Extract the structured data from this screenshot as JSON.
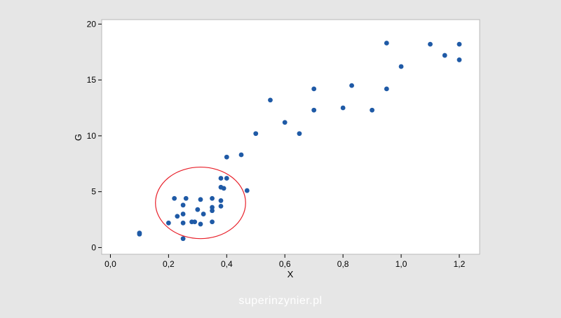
{
  "chart_data": {
    "type": "scatter",
    "title": "",
    "xlabel": "X",
    "ylabel": "G",
    "xlim": [
      -0.03,
      1.27
    ],
    "ylim": [
      -0.6,
      20.4
    ],
    "x_ticks": [
      {
        "value": 0.0,
        "label": "0,0"
      },
      {
        "value": 0.2,
        "label": "0,2"
      },
      {
        "value": 0.4,
        "label": "0,4"
      },
      {
        "value": 0.6,
        "label": "0,6"
      },
      {
        "value": 0.8,
        "label": "0,8"
      },
      {
        "value": 1.0,
        "label": "1,0"
      },
      {
        "value": 1.2,
        "label": "1,2"
      }
    ],
    "y_ticks": [
      {
        "value": 0,
        "label": "0"
      },
      {
        "value": 5,
        "label": "5"
      },
      {
        "value": 10,
        "label": "10"
      },
      {
        "value": 15,
        "label": "15"
      },
      {
        "value": 20,
        "label": "20"
      }
    ],
    "grid": false,
    "marker_color": "#1f5aa6",
    "highlight_color": "#e8202a",
    "highlight_ellipse": {
      "cx": 0.31,
      "cy": 4.0,
      "rx": 0.155,
      "ry": 3.2
    },
    "points": [
      {
        "x": 0.1,
        "y": 1.2
      },
      {
        "x": 0.1,
        "y": 1.3
      },
      {
        "x": 0.2,
        "y": 2.2
      },
      {
        "x": 0.22,
        "y": 4.4
      },
      {
        "x": 0.23,
        "y": 2.8
      },
      {
        "x": 0.25,
        "y": 0.8
      },
      {
        "x": 0.25,
        "y": 2.2
      },
      {
        "x": 0.25,
        "y": 3.0
      },
      {
        "x": 0.25,
        "y": 3.8
      },
      {
        "x": 0.26,
        "y": 4.4
      },
      {
        "x": 0.28,
        "y": 2.3
      },
      {
        "x": 0.29,
        "y": 2.3
      },
      {
        "x": 0.3,
        "y": 3.4
      },
      {
        "x": 0.31,
        "y": 2.1
      },
      {
        "x": 0.31,
        "y": 4.3
      },
      {
        "x": 0.32,
        "y": 3.0
      },
      {
        "x": 0.35,
        "y": 2.3
      },
      {
        "x": 0.35,
        "y": 3.3
      },
      {
        "x": 0.35,
        "y": 3.6
      },
      {
        "x": 0.35,
        "y": 4.4
      },
      {
        "x": 0.38,
        "y": 3.7
      },
      {
        "x": 0.38,
        "y": 4.2
      },
      {
        "x": 0.38,
        "y": 5.4
      },
      {
        "x": 0.38,
        "y": 6.2
      },
      {
        "x": 0.39,
        "y": 5.3
      },
      {
        "x": 0.4,
        "y": 6.2
      },
      {
        "x": 0.4,
        "y": 8.1
      },
      {
        "x": 0.45,
        "y": 8.3
      },
      {
        "x": 0.47,
        "y": 5.1
      },
      {
        "x": 0.5,
        "y": 10.2
      },
      {
        "x": 0.55,
        "y": 13.2
      },
      {
        "x": 0.6,
        "y": 11.2
      },
      {
        "x": 0.65,
        "y": 10.2
      },
      {
        "x": 0.7,
        "y": 12.3
      },
      {
        "x": 0.7,
        "y": 14.2
      },
      {
        "x": 0.8,
        "y": 12.5
      },
      {
        "x": 0.83,
        "y": 14.5
      },
      {
        "x": 0.9,
        "y": 12.3
      },
      {
        "x": 0.95,
        "y": 14.2
      },
      {
        "x": 0.95,
        "y": 18.3
      },
      {
        "x": 1.0,
        "y": 16.2
      },
      {
        "x": 1.1,
        "y": 18.2
      },
      {
        "x": 1.15,
        "y": 17.2
      },
      {
        "x": 1.2,
        "y": 16.8
      },
      {
        "x": 1.2,
        "y": 18.2
      }
    ]
  },
  "watermark": "superinzynier.pl"
}
